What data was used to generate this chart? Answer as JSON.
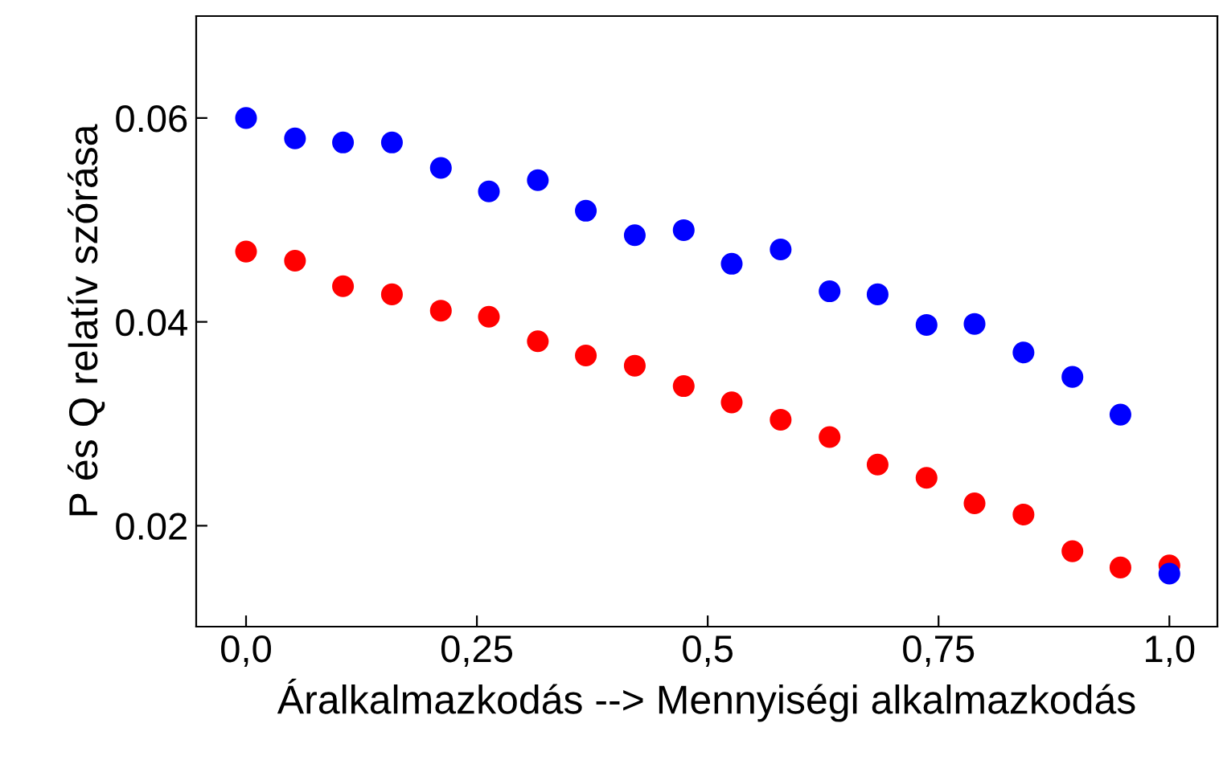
{
  "chart_data": {
    "type": "scatter",
    "xlabel": "Áralkalmazkodás --> Mennyiségi alkalmazkodás",
    "ylabel": "P és Q relatív szórása",
    "x": [
      0,
      0.053,
      0.105,
      0.158,
      0.211,
      0.263,
      0.316,
      0.368,
      0.421,
      0.474,
      0.526,
      0.579,
      0.632,
      0.684,
      0.737,
      0.789,
      0.842,
      0.895,
      0.947,
      1.0
    ],
    "series": [
      {
        "color": "#0000ff",
        "values": [
          0.06,
          0.058,
          0.0576,
          0.0576,
          0.0551,
          0.0528,
          0.0539,
          0.0509,
          0.0485,
          0.049,
          0.0457,
          0.0471,
          0.043,
          0.0427,
          0.0397,
          0.0398,
          0.037,
          0.0346,
          0.0309,
          0.0153
        ]
      },
      {
        "color": "#ff0000",
        "values": [
          0.0469,
          0.046,
          0.0435,
          0.0427,
          0.0411,
          0.0405,
          0.0381,
          0.0367,
          0.0357,
          0.0337,
          0.0321,
          0.0304,
          0.0287,
          0.026,
          0.0247,
          0.0222,
          0.0211,
          0.0175,
          0.0159,
          0.0161
        ]
      }
    ],
    "xlim": [
      -0.054,
      1.052
    ],
    "ylim": [
      0.0101,
      0.07
    ],
    "xticks": [
      {
        "value": 0,
        "label": "0,0"
      },
      {
        "value": 0.25,
        "label": "0,25"
      },
      {
        "value": 0.5,
        "label": "0,5"
      },
      {
        "value": 0.75,
        "label": "0,75"
      },
      {
        "value": 1.0,
        "label": "1,0"
      }
    ],
    "yticks": [
      0.02,
      0.04,
      0.06
    ],
    "marker": "circle",
    "grid": false,
    "legend": false
  }
}
